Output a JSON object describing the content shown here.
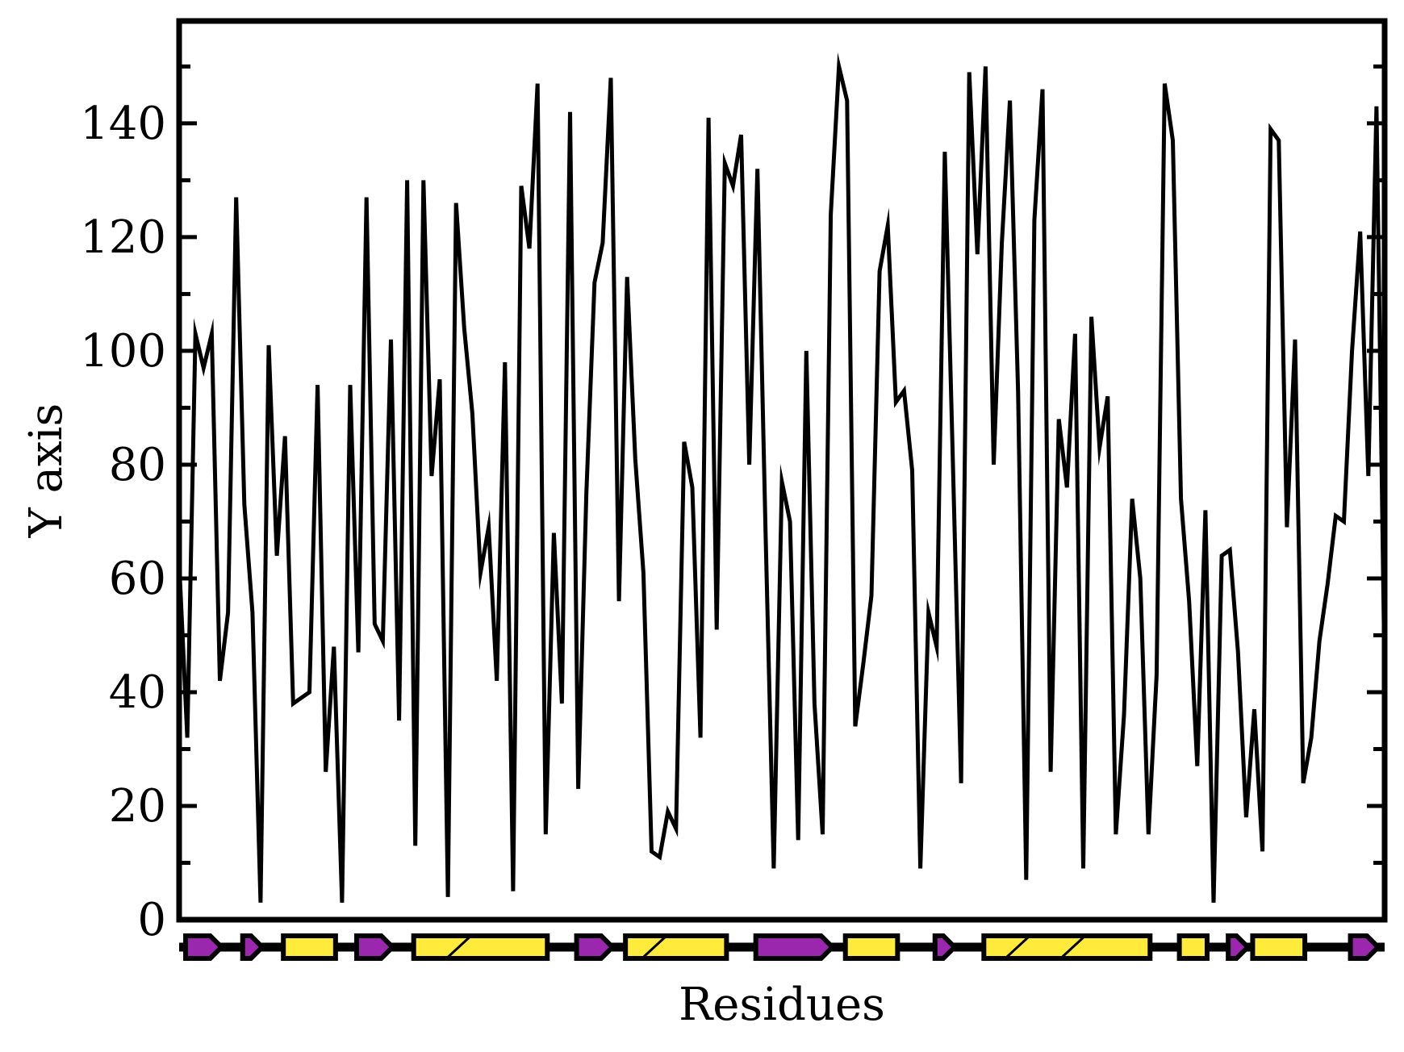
{
  "chart_data": {
    "type": "line",
    "title": "",
    "xlabel": "Residues",
    "ylabel": "Y axis",
    "xlim": [
      0,
      148
    ],
    "ylim": [
      0,
      158
    ],
    "yticks": [
      0,
      20,
      40,
      60,
      80,
      100,
      120,
      140
    ],
    "ytick_labels": [
      "0",
      "20",
      "40",
      "60",
      "80",
      "100",
      "120",
      "140"
    ],
    "x_tick_labels_shown": false,
    "grid": false,
    "line_color": "#000000",
    "series": [
      {
        "name": "values",
        "values": [
          63,
          32,
          103,
          97,
          103,
          42,
          54,
          127,
          73,
          54,
          3,
          101,
          64,
          85,
          38,
          39,
          40,
          94,
          26,
          48,
          3,
          94,
          47,
          127,
          52,
          49,
          102,
          35,
          130,
          13,
          130,
          78,
          95,
          4,
          126,
          104,
          89,
          61,
          69,
          42,
          98,
          5,
          129,
          118,
          147,
          15,
          68,
          38,
          142,
          23,
          75,
          112,
          119,
          148,
          56,
          113,
          81,
          61,
          12,
          11,
          19,
          16,
          84,
          76,
          32,
          141,
          51,
          133,
          129,
          138,
          80,
          132,
          68,
          9,
          77,
          70,
          14,
          100,
          38,
          15,
          124,
          150,
          144,
          34,
          45,
          57,
          114,
          122,
          91,
          93,
          79,
          9,
          54,
          48,
          135,
          80,
          24,
          149,
          117,
          150,
          80,
          119,
          144,
          93,
          7,
          123,
          146,
          26,
          88,
          76,
          103,
          9,
          106,
          83,
          92,
          15,
          36,
          74,
          60,
          15,
          43,
          147,
          137,
          74,
          56,
          27,
          72,
          3,
          64,
          65,
          47,
          18,
          37,
          12,
          139,
          137,
          69,
          102,
          24,
          32,
          49,
          59,
          71,
          70,
          100,
          121,
          78,
          143,
          42
        ]
      }
    ],
    "secondary_structure": {
      "colors": {
        "strand": "#9b27af",
        "helix": "#ffeb3b",
        "outline": "#000000"
      },
      "elements": [
        {
          "type": "strand",
          "start": 0.5,
          "end": 5.5
        },
        {
          "type": "strand",
          "start": 7.5,
          "end": 10.5
        },
        {
          "type": "helix",
          "start": 12.5,
          "end": 19.5
        },
        {
          "type": "strand",
          "start": 21.5,
          "end": 26.5
        },
        {
          "type": "helix",
          "start": 28.5,
          "end": 45.5
        },
        {
          "type": "strand",
          "start": 48.5,
          "end": 53.5
        },
        {
          "type": "helix",
          "start": 54.5,
          "end": 67.5
        },
        {
          "type": "strand",
          "start": 70.5,
          "end": 80.5
        },
        {
          "type": "helix",
          "start": 81.5,
          "end": 88.5
        },
        {
          "type": "strand",
          "start": 92.5,
          "end": 95.5
        },
        {
          "type": "helix",
          "start": 98.5,
          "end": 119.5
        },
        {
          "type": "helix",
          "start": 122.5,
          "end": 126.5
        },
        {
          "type": "strand",
          "start": 128.5,
          "end": 131.5
        },
        {
          "type": "helix",
          "start": 131.5,
          "end": 138.5
        },
        {
          "type": "strand",
          "start": 143.5,
          "end": 147.5
        }
      ]
    }
  }
}
